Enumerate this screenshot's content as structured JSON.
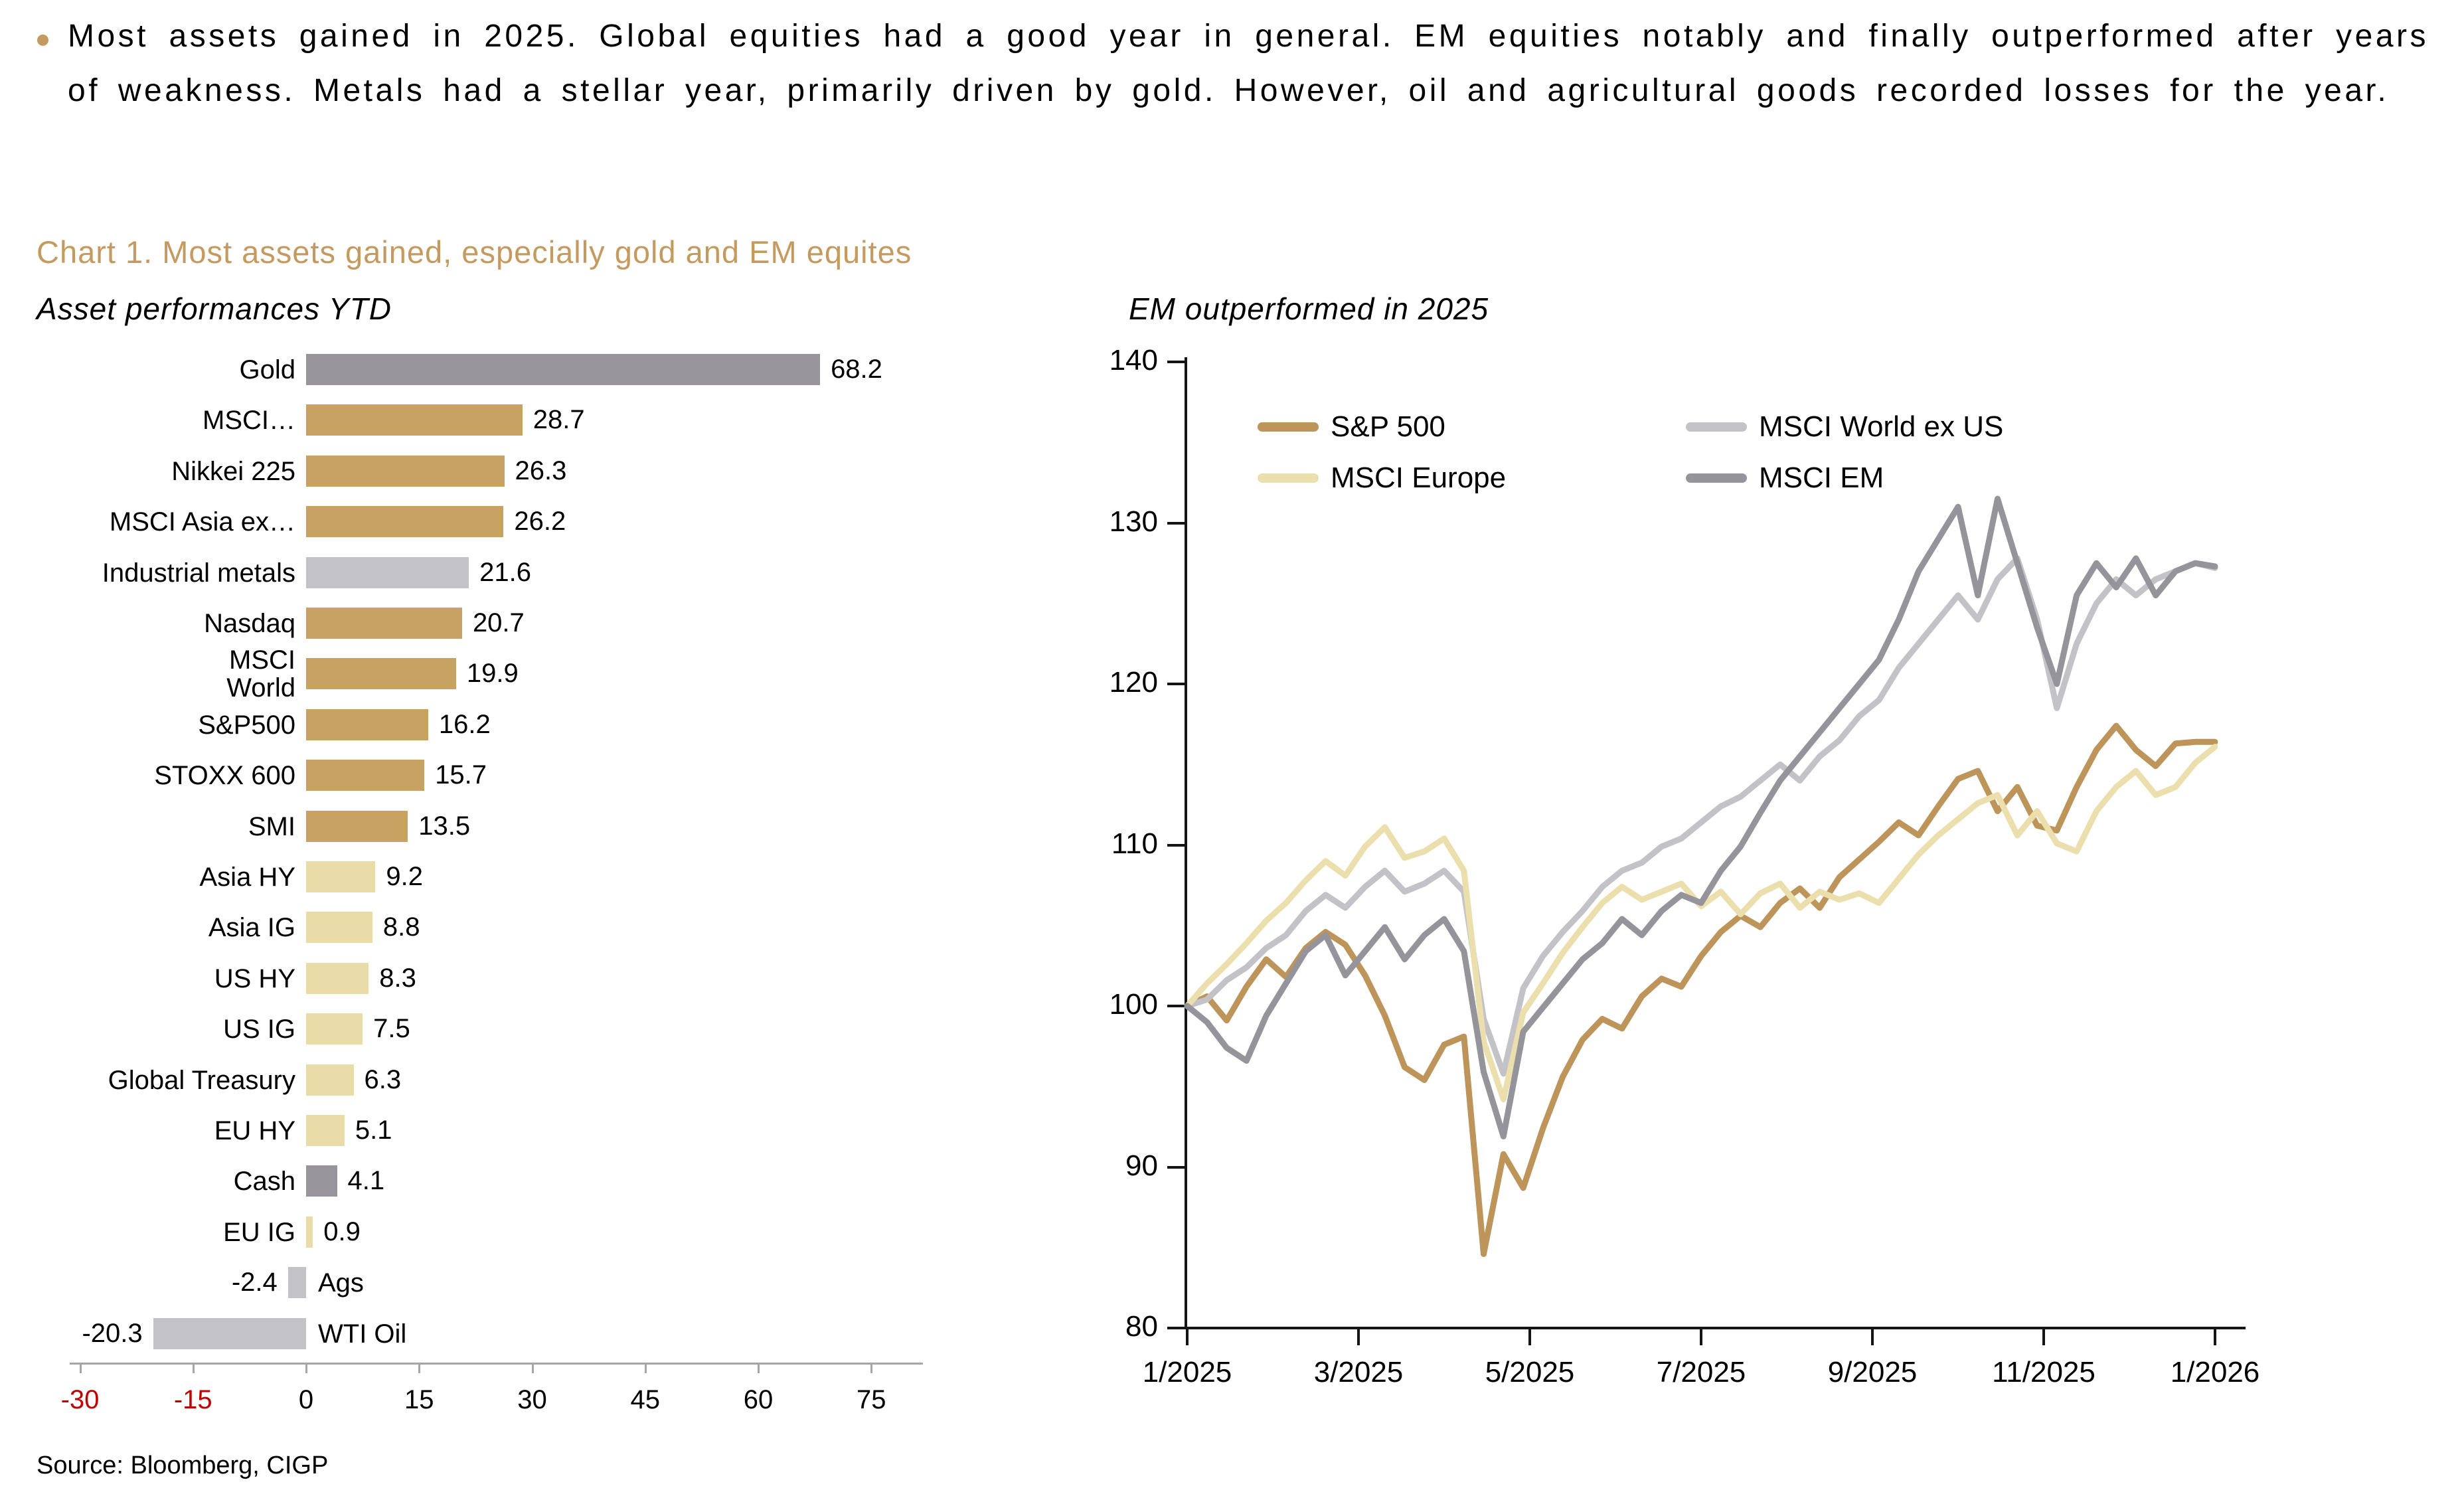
{
  "page": {
    "bullet_text": "Most assets gained in 2025. Global equities had a good year in general. EM equities notably and finally outperformed after years of weakness. Metals had a stellar year, primarily driven by gold. However, oil and agricultural goods recorded losses for the year.",
    "chart_title": "Chart 1. Most assets gained, especially gold and EM equites",
    "source": "Source: Bloomberg, CIGP"
  },
  "colors": {
    "accent_gold": "#C49A5F",
    "bar_tan": "#C8A263",
    "bar_cream": "#EADCA9",
    "bar_silver": "#C3C2C7",
    "bar_gray": "#97959B",
    "line_sp": "#BD9459",
    "line_eu": "#EBDFAD",
    "line_wx": "#C3C2C7",
    "line_em": "#95949A",
    "negative_tick_red": "#C00000",
    "axis_gray": "#A6A6A6",
    "axis_black": "#151515"
  },
  "chart_data": [
    {
      "type": "bar",
      "title": "Asset performances YTD",
      "orientation": "horizontal",
      "xlim": [
        -30,
        75
      ],
      "xticks": [
        -30,
        -15,
        0,
        15,
        30,
        45,
        60,
        75
      ],
      "grid": false,
      "bars": [
        {
          "label": "Gold",
          "value": 68.2,
          "color": "bar_gray"
        },
        {
          "label": "MSCI…",
          "value": 28.7,
          "color": "bar_tan"
        },
        {
          "label": "Nikkei 225",
          "value": 26.3,
          "color": "bar_tan"
        },
        {
          "label": "MSCI Asia ex…",
          "value": 26.2,
          "color": "bar_tan"
        },
        {
          "label": "Industrial metals",
          "value": 21.6,
          "color": "bar_silver"
        },
        {
          "label": "Nasdaq",
          "value": 20.7,
          "color": "bar_tan"
        },
        {
          "label": "MSCI\nWorld",
          "value": 19.9,
          "color": "bar_tan"
        },
        {
          "label": "S&P500",
          "value": 16.2,
          "color": "bar_tan"
        },
        {
          "label": "STOXX 600",
          "value": 15.7,
          "color": "bar_tan"
        },
        {
          "label": "SMI",
          "value": 13.5,
          "color": "bar_tan"
        },
        {
          "label": "Asia HY",
          "value": 9.2,
          "color": "bar_cream"
        },
        {
          "label": "Asia IG",
          "value": 8.8,
          "color": "bar_cream"
        },
        {
          "label": "US HY",
          "value": 8.3,
          "color": "bar_cream"
        },
        {
          "label": "US IG",
          "value": 7.5,
          "color": "bar_cream"
        },
        {
          "label": "Global Treasury",
          "value": 6.3,
          "color": "bar_cream"
        },
        {
          "label": "EU HY",
          "value": 5.1,
          "color": "bar_cream"
        },
        {
          "label": "Cash",
          "value": 4.1,
          "color": "bar_gray"
        },
        {
          "label": "EU IG",
          "value": 0.9,
          "color": "bar_cream"
        },
        {
          "label": "Ags",
          "value": -2.4,
          "color": "bar_silver"
        },
        {
          "label": "WTI Oil",
          "value": -20.3,
          "color": "bar_silver"
        }
      ]
    },
    {
      "type": "line",
      "title": "EM outperformed in 2025",
      "ylim": [
        80,
        140
      ],
      "yticks": [
        80,
        90,
        100,
        110,
        120,
        130,
        140
      ],
      "xticklabels": [
        "1/2025",
        "3/2025",
        "5/2025",
        "7/2025",
        "9/2025",
        "11/2025",
        "1/2026"
      ],
      "grid": false,
      "legend_position": "top-inside-two-columns",
      "legend": [
        {
          "name": "S&P 500",
          "color": "line_sp"
        },
        {
          "name": "MSCI World ex US",
          "color": "line_wx"
        },
        {
          "name": "MSCI Europe",
          "color": "line_eu"
        },
        {
          "name": "MSCI EM",
          "color": "line_em"
        }
      ],
      "series": [
        {
          "name": "S&P 500",
          "color": "line_sp",
          "values": [
            100,
            100.6,
            99.1,
            101.2,
            102.9,
            101.8,
            103.6,
            104.6,
            103.8,
            101.9,
            99.4,
            96.2,
            95.4,
            97.6,
            98.1,
            84.6,
            90.8,
            88.7,
            92.4,
            95.6,
            97.9,
            99.2,
            98.6,
            100.6,
            101.7,
            101.2,
            103.1,
            104.6,
            105.6,
            104.9,
            106.4,
            107.3,
            106.1,
            108.0,
            109.1,
            110.2,
            111.4,
            110.6,
            112.4,
            114.1,
            114.6,
            112.1,
            113.6,
            111.2,
            110.9,
            113.6,
            115.9,
            117.4,
            115.9,
            114.9,
            116.3,
            116.4,
            116.4
          ]
        },
        {
          "name": "MSCI World ex US",
          "color": "line_wx",
          "values": [
            100,
            100.4,
            101.6,
            102.4,
            103.6,
            104.4,
            105.9,
            106.9,
            106.1,
            107.4,
            108.4,
            107.1,
            107.6,
            108.4,
            107.1,
            99.2,
            95.8,
            101.1,
            103.1,
            104.6,
            105.9,
            107.4,
            108.4,
            108.9,
            109.9,
            110.4,
            111.4,
            112.4,
            113.0,
            114.0,
            115.0,
            114.0,
            115.5,
            116.5,
            118.0,
            119.0,
            121.0,
            122.5,
            124.0,
            125.5,
            124.0,
            126.5,
            127.8,
            124.0,
            118.5,
            122.5,
            125.0,
            126.5,
            125.5,
            126.5,
            127.0,
            127.5,
            127.2
          ]
        },
        {
          "name": "MSCI Europe",
          "color": "line_eu",
          "values": [
            100,
            101.4,
            102.6,
            103.9,
            105.3,
            106.4,
            107.8,
            109.0,
            108.1,
            109.9,
            111.1,
            109.2,
            109.6,
            110.4,
            108.4,
            97.8,
            94.2,
            99.6,
            101.4,
            103.3,
            104.9,
            106.4,
            107.4,
            106.6,
            107.1,
            107.6,
            106.2,
            107.1,
            105.7,
            107.0,
            107.6,
            106.1,
            107.1,
            106.6,
            107.0,
            106.4,
            107.9,
            109.4,
            110.6,
            111.6,
            112.6,
            113.1,
            110.6,
            112.1,
            110.1,
            109.6,
            112.1,
            113.6,
            114.6,
            113.1,
            113.6,
            115.1,
            116.1
          ]
        },
        {
          "name": "MSCI EM",
          "color": "line_em",
          "values": [
            100,
            99.0,
            97.4,
            96.6,
            99.4,
            101.4,
            103.4,
            104.4,
            101.9,
            103.4,
            104.9,
            102.9,
            104.4,
            105.4,
            103.4,
            95.9,
            91.9,
            98.4,
            99.9,
            101.4,
            102.9,
            103.9,
            105.4,
            104.4,
            105.9,
            106.9,
            106.4,
            108.4,
            109.9,
            112.0,
            114.0,
            115.5,
            117.0,
            118.5,
            120.0,
            121.5,
            124.0,
            127.0,
            129.0,
            131.0,
            125.5,
            131.5,
            127.5,
            123.5,
            120.0,
            125.5,
            127.5,
            126.0,
            127.8,
            125.5,
            127.0,
            127.5,
            127.3
          ]
        }
      ]
    }
  ]
}
